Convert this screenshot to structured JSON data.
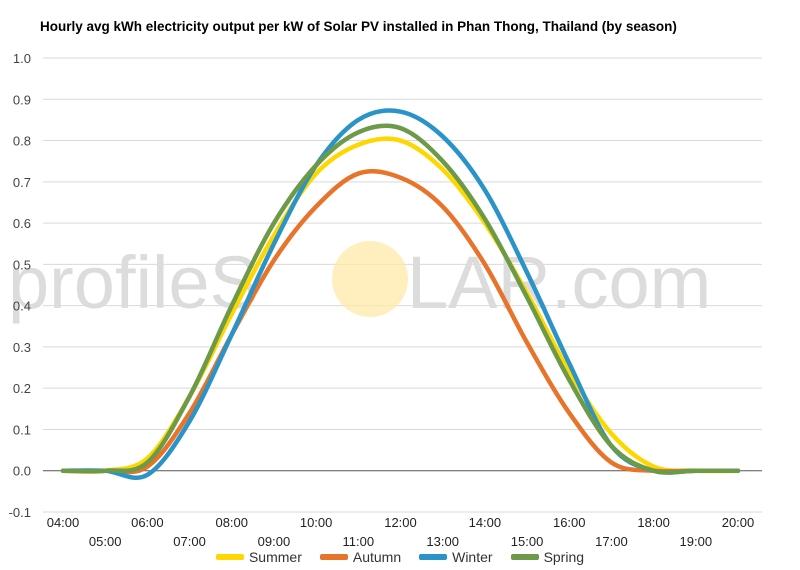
{
  "chart_data": {
    "type": "line",
    "title": "Hourly avg kWh electricity output per kW of Solar PV installed in Phan Thong, Thailand (by season)",
    "ylim": [
      -0.1,
      1.0
    ],
    "y_ticks": [
      "1.0",
      "0.9",
      "0.8",
      "0.7",
      "0.6",
      "0.5",
      "0.4",
      "0.3",
      "0.2",
      "0.1",
      "0.0",
      "-0.1"
    ],
    "x": [
      "04:00",
      "05:00",
      "06:00",
      "07:00",
      "08:00",
      "09:00",
      "10:00",
      "11:00",
      "12:00",
      "13:00",
      "14:00",
      "15:00",
      "16:00",
      "17:00",
      "18:00",
      "19:00",
      "20:00"
    ],
    "grid": true,
    "legend_position": "bottom",
    "series": [
      {
        "name": "Summer",
        "color": "#FFD700",
        "values": [
          0.0,
          0.0,
          0.03,
          0.18,
          0.38,
          0.57,
          0.72,
          0.79,
          0.8,
          0.73,
          0.6,
          0.43,
          0.24,
          0.09,
          0.01,
          0.0,
          0.0
        ]
      },
      {
        "name": "Autumn",
        "color": "#E8732A",
        "values": [
          0.0,
          0.0,
          0.01,
          0.14,
          0.33,
          0.51,
          0.64,
          0.72,
          0.71,
          0.64,
          0.5,
          0.31,
          0.14,
          0.02,
          0.0,
          0.0,
          0.0
        ]
      },
      {
        "name": "Winter",
        "color": "#2A93C7",
        "values": [
          0.0,
          0.0,
          -0.01,
          0.12,
          0.33,
          0.55,
          0.74,
          0.85,
          0.87,
          0.81,
          0.68,
          0.48,
          0.26,
          0.06,
          0.0,
          0.0,
          0.0
        ]
      },
      {
        "name": "Spring",
        "color": "#6C9A48",
        "values": [
          0.0,
          0.0,
          0.02,
          0.18,
          0.4,
          0.6,
          0.74,
          0.82,
          0.83,
          0.75,
          0.61,
          0.42,
          0.22,
          0.06,
          0.0,
          0.0,
          0.0
        ]
      }
    ]
  },
  "watermark": {
    "left": "profileS",
    "right": "LAR.com",
    "sun_color": "#FFE9A8"
  }
}
